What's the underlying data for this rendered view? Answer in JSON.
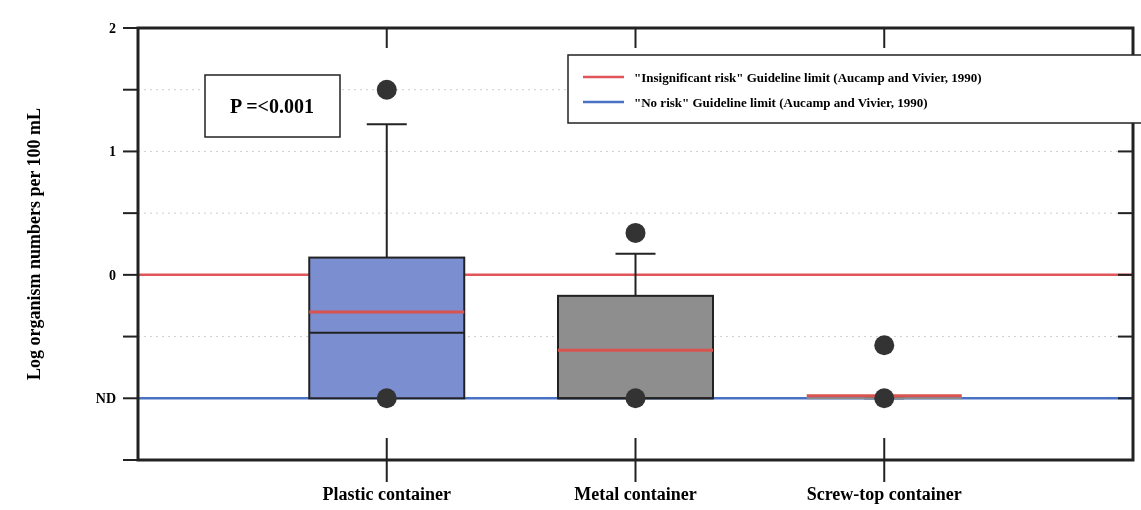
{
  "chart_data": {
    "type": "box",
    "ylabel": "Log organism numbers per 100 mL",
    "categories": [
      "Plastic container",
      "Metal container",
      "Screw-top container"
    ],
    "colors": [
      "#7b8fd0",
      "#8e8e8e",
      "#8e8e8e"
    ],
    "boxes": [
      {
        "low": -1,
        "q1": -1,
        "median": -0.47,
        "q3": 0.14,
        "high": 1.22,
        "mean": -0.3,
        "outliers": [
          1.5,
          -1
        ]
      },
      {
        "low": -1,
        "q1": -1,
        "median": -1,
        "q3": -0.17,
        "high": 0.17,
        "mean": -0.61,
        "outliers": [
          0.34,
          -1
        ]
      },
      {
        "low": -1,
        "q1": -1,
        "median": -1,
        "q3": -1,
        "high": -1,
        "mean": -0.98,
        "outliers": [
          -0.57,
          -1
        ]
      }
    ],
    "ylim": [
      -1.5,
      2
    ],
    "yticks": [
      {
        "value": -1.5,
        "label": null
      },
      {
        "value": -1,
        "label": "ND"
      },
      {
        "value": -0.5,
        "label": null
      },
      0,
      {
        "value": 0.5,
        "label": null
      },
      1,
      {
        "value": 1.5,
        "label": null
      },
      2
    ],
    "grid": "y",
    "ref_lines": [
      {
        "axis": "y",
        "value": 0,
        "label": "\"Insignificant risk\" Guideline limit (Aucamp and Vivier, 1990)",
        "color": "#e0555a"
      },
      {
        "axis": "y",
        "value": -1,
        "label": "\"No risk\" Guideline limit (Aucamp and Vivier, 1990)",
        "color": "#4a72c4"
      }
    ],
    "legend": "top right",
    "annotations": [
      "P =<0.001"
    ]
  }
}
